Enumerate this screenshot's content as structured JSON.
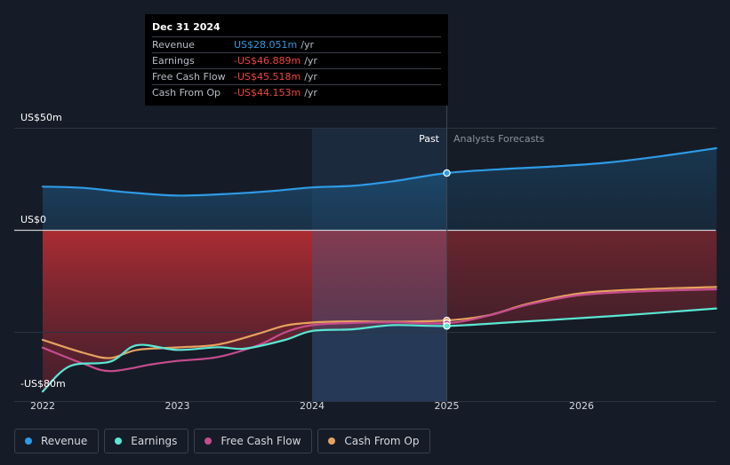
{
  "chart_data": {
    "type": "area",
    "y_axis": {
      "top_label": "US$50m",
      "zero_label": "US$0",
      "bottom_label": "-US$80m",
      "ylim": [
        -80,
        50
      ]
    },
    "x_axis": {
      "ticks": [
        "2022",
        "2023",
        "2024",
        "2025",
        "2026"
      ],
      "xlim": [
        2022,
        2027
      ]
    },
    "past_label": "Past",
    "forecast_label": "Analysts Forecasts",
    "forecast_start": 2025.0,
    "series": [
      {
        "name": "Revenue",
        "color": "#2e9be6",
        "points": [
          [
            2022.0,
            21.4
          ],
          [
            2022.3,
            20.8
          ],
          [
            2022.6,
            18.8
          ],
          [
            2023.0,
            17.0
          ],
          [
            2023.4,
            17.9
          ],
          [
            2023.7,
            19.2
          ],
          [
            2024.0,
            21.0
          ],
          [
            2024.3,
            21.8
          ],
          [
            2024.6,
            24.0
          ],
          [
            2025.0,
            28.051
          ],
          [
            2025.4,
            29.9
          ],
          [
            2025.8,
            31.3
          ],
          [
            2026.2,
            33.2
          ],
          [
            2026.6,
            36.4
          ],
          [
            2027.0,
            40.2
          ]
        ]
      },
      {
        "name": "Earnings",
        "color": "#5be6d3",
        "points": [
          [
            2022.0,
            -79.0
          ],
          [
            2022.2,
            -66.6
          ],
          [
            2022.5,
            -64.4
          ],
          [
            2022.7,
            -56.3
          ],
          [
            2023.0,
            -58.6
          ],
          [
            2023.3,
            -57.3
          ],
          [
            2023.5,
            -58.0
          ],
          [
            2023.8,
            -53.7
          ],
          [
            2024.0,
            -49.3
          ],
          [
            2024.3,
            -48.5
          ],
          [
            2024.6,
            -46.5
          ],
          [
            2025.0,
            -46.889
          ],
          [
            2025.5,
            -45.0
          ],
          [
            2026.0,
            -43.0
          ],
          [
            2026.5,
            -40.8
          ],
          [
            2027.0,
            -38.3
          ]
        ]
      },
      {
        "name": "Free Cash Flow",
        "color": "#c64c8f",
        "points": [
          [
            2022.0,
            -57.5
          ],
          [
            2022.3,
            -65.3
          ],
          [
            2022.5,
            -69.0
          ],
          [
            2022.8,
            -65.8
          ],
          [
            2023.0,
            -64.0
          ],
          [
            2023.3,
            -62.1
          ],
          [
            2023.6,
            -56.3
          ],
          [
            2023.8,
            -50.0
          ],
          [
            2024.0,
            -46.5
          ],
          [
            2024.3,
            -45.4
          ],
          [
            2024.6,
            -45.1
          ],
          [
            2025.0,
            -45.518
          ],
          [
            2025.3,
            -42.0
          ],
          [
            2025.6,
            -36.5
          ],
          [
            2026.0,
            -31.7
          ],
          [
            2026.5,
            -29.8
          ],
          [
            2027.0,
            -28.9
          ]
        ]
      },
      {
        "name": "Cash From Op",
        "color": "#e7a25f",
        "points": [
          [
            2022.0,
            -53.7
          ],
          [
            2022.3,
            -60.0
          ],
          [
            2022.5,
            -62.6
          ],
          [
            2022.7,
            -58.6
          ],
          [
            2023.0,
            -57.4
          ],
          [
            2023.3,
            -56.0
          ],
          [
            2023.6,
            -50.7
          ],
          [
            2023.8,
            -46.7
          ],
          [
            2024.0,
            -45.2
          ],
          [
            2024.3,
            -44.6
          ],
          [
            2024.6,
            -44.8
          ],
          [
            2025.0,
            -44.153
          ],
          [
            2025.3,
            -41.8
          ],
          [
            2025.6,
            -36.1
          ],
          [
            2026.0,
            -30.8
          ],
          [
            2026.5,
            -28.8
          ],
          [
            2027.0,
            -27.8
          ]
        ]
      }
    ]
  },
  "tooltip": {
    "date": "Dec 31 2024",
    "rows": [
      {
        "label": "Revenue",
        "value": "US$28.051m",
        "unit": "/yr",
        "color": "#2e9be6"
      },
      {
        "label": "Earnings",
        "value": "-US$46.889m",
        "unit": "/yr",
        "color": "#ef4444"
      },
      {
        "label": "Free Cash Flow",
        "value": "-US$45.518m",
        "unit": "/yr",
        "color": "#ef4444"
      },
      {
        "label": "Cash From Op",
        "value": "-US$44.153m",
        "unit": "/yr",
        "color": "#ef4444"
      }
    ]
  },
  "legend": [
    {
      "label": "Revenue",
      "color": "#2e9be6"
    },
    {
      "label": "Earnings",
      "color": "#5be6d3"
    },
    {
      "label": "Free Cash Flow",
      "color": "#c64c8f"
    },
    {
      "label": "Cash From Op",
      "color": "#e7a25f"
    }
  ]
}
